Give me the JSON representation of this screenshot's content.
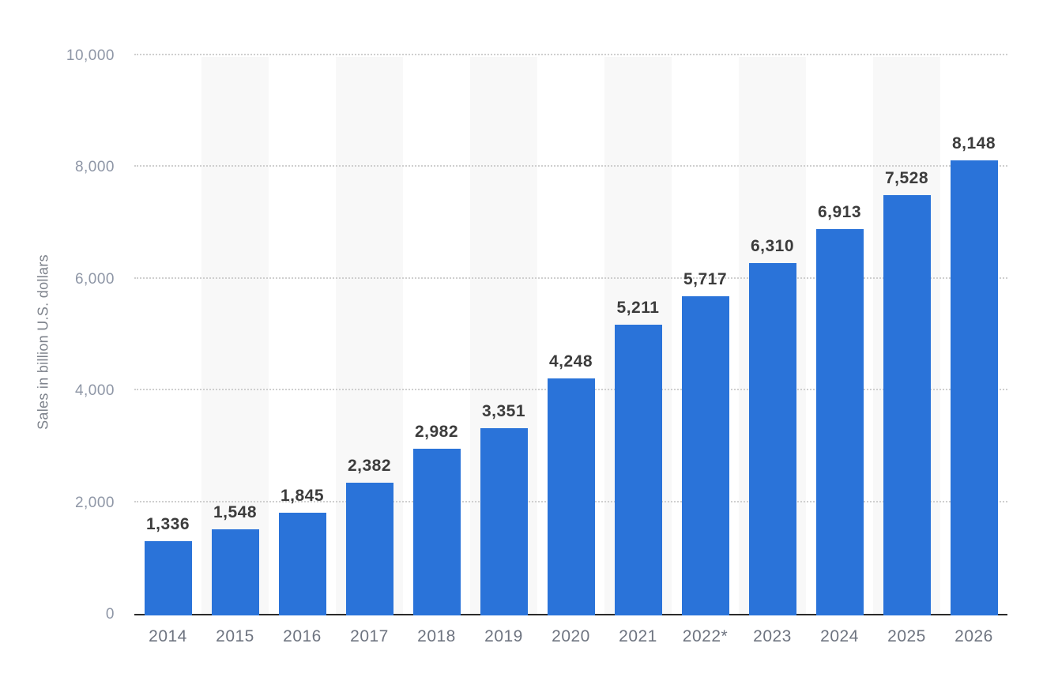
{
  "chart_data": {
    "type": "bar",
    "title": "",
    "xlabel": "",
    "ylabel": "Sales in billion U.S. dollars",
    "categories": [
      "2014",
      "2015",
      "2016",
      "2017",
      "2018",
      "2019",
      "2020",
      "2021",
      "2022*",
      "2023",
      "2024",
      "2025",
      "2026"
    ],
    "values": [
      1336,
      1548,
      1845,
      2382,
      2982,
      3351,
      4248,
      5211,
      5717,
      6310,
      6913,
      7528,
      8148
    ],
    "value_labels": [
      "1,336",
      "1,548",
      "1,845",
      "2,382",
      "2,982",
      "3,351",
      "4,248",
      "5,211",
      "5,717",
      "6,310",
      "6,913",
      "7,528",
      "8,148"
    ],
    "ylim": [
      0,
      10000
    ],
    "yticks": [
      0,
      2000,
      4000,
      6000,
      8000,
      10000
    ],
    "ytick_labels": [
      "0",
      "2,000",
      "4,000",
      "6,000",
      "8,000",
      "10,000"
    ],
    "grid": "horizontal-dotted",
    "legend": "none",
    "banding": "alternating-columns",
    "colors": {
      "bar": "#2a73d9",
      "band": "#f8f8f8",
      "grid": "#cfcfcf",
      "axis_line": "#2b2b2b",
      "value_label": "#3c3c3c",
      "x_tick_label": "#6e7480",
      "y_tick_label": "#8e96a6",
      "axis_title": "#7d828b"
    }
  }
}
